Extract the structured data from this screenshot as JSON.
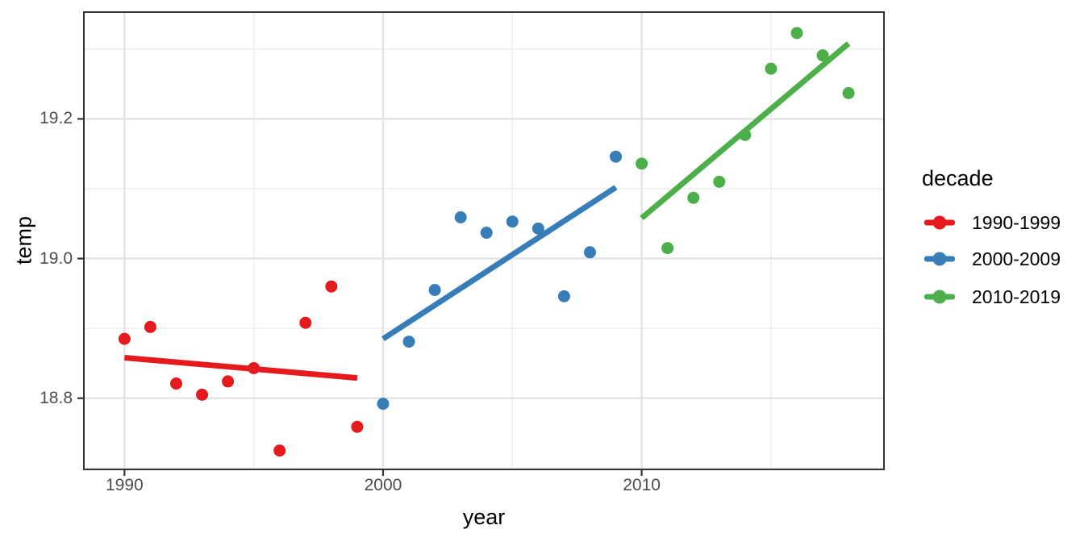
{
  "chart_data": {
    "type": "scatter",
    "title": "",
    "xlabel": "year",
    "ylabel": "temp",
    "grid": true,
    "legend": {
      "title": "decade",
      "position": "right"
    },
    "xlim": [
      1988.43,
      2019.37
    ],
    "ylim": [
      18.698,
      19.353
    ],
    "x_ticks": [
      {
        "value": 1990,
        "label": "1990"
      },
      {
        "value": 2000,
        "label": "2000"
      },
      {
        "value": 2010,
        "label": "2010"
      }
    ],
    "y_ticks": [
      {
        "value": 18.8,
        "label": "18.8"
      },
      {
        "value": 19.0,
        "label": "19.0"
      },
      {
        "value": 19.2,
        "label": "19.2"
      }
    ],
    "x_minor": [
      1995,
      2005,
      2015
    ],
    "y_minor": [
      18.7,
      18.9,
      19.1,
      19.3
    ],
    "style_colors": {
      "grid_major": "#e3e3e3",
      "grid_minor": "#eeeeee",
      "panel_border": "#333333",
      "tick_mark": "#333333",
      "tick_label": "#4d4d4d"
    },
    "series": [
      {
        "name": "1990-1999",
        "color": "#E41A1C",
        "points": [
          [
            1990,
            18.885
          ],
          [
            1991,
            18.902
          ],
          [
            1992,
            18.821
          ],
          [
            1993,
            18.805
          ],
          [
            1994,
            18.824
          ],
          [
            1995,
            18.843
          ],
          [
            1996,
            18.725
          ],
          [
            1997,
            18.908
          ],
          [
            1998,
            18.96
          ],
          [
            1999,
            18.759
          ]
        ],
        "trend": [
          [
            1990,
            18.858
          ],
          [
            1999,
            18.829
          ]
        ]
      },
      {
        "name": "2000-2009",
        "color": "#377EB8",
        "points": [
          [
            2000,
            18.792
          ],
          [
            2001,
            18.881
          ],
          [
            2002,
            18.955
          ],
          [
            2003,
            19.059
          ],
          [
            2004,
            19.037
          ],
          [
            2005,
            19.053
          ],
          [
            2006,
            19.043
          ],
          [
            2007,
            18.946
          ],
          [
            2008,
            19.009
          ],
          [
            2009,
            19.146
          ]
        ],
        "trend": [
          [
            2000,
            18.885
          ],
          [
            2009,
            19.102
          ]
        ]
      },
      {
        "name": "2010-2019",
        "color": "#4DAF4A",
        "points": [
          [
            2010,
            19.136
          ],
          [
            2011,
            19.015
          ],
          [
            2012,
            19.087
          ],
          [
            2013,
            19.11
          ],
          [
            2014,
            19.177
          ],
          [
            2015,
            19.272
          ],
          [
            2016,
            19.323
          ],
          [
            2017,
            19.291
          ],
          [
            2018,
            19.237
          ]
        ],
        "trend": [
          [
            2010,
            19.058
          ],
          [
            2018,
            19.308
          ]
        ]
      }
    ]
  }
}
